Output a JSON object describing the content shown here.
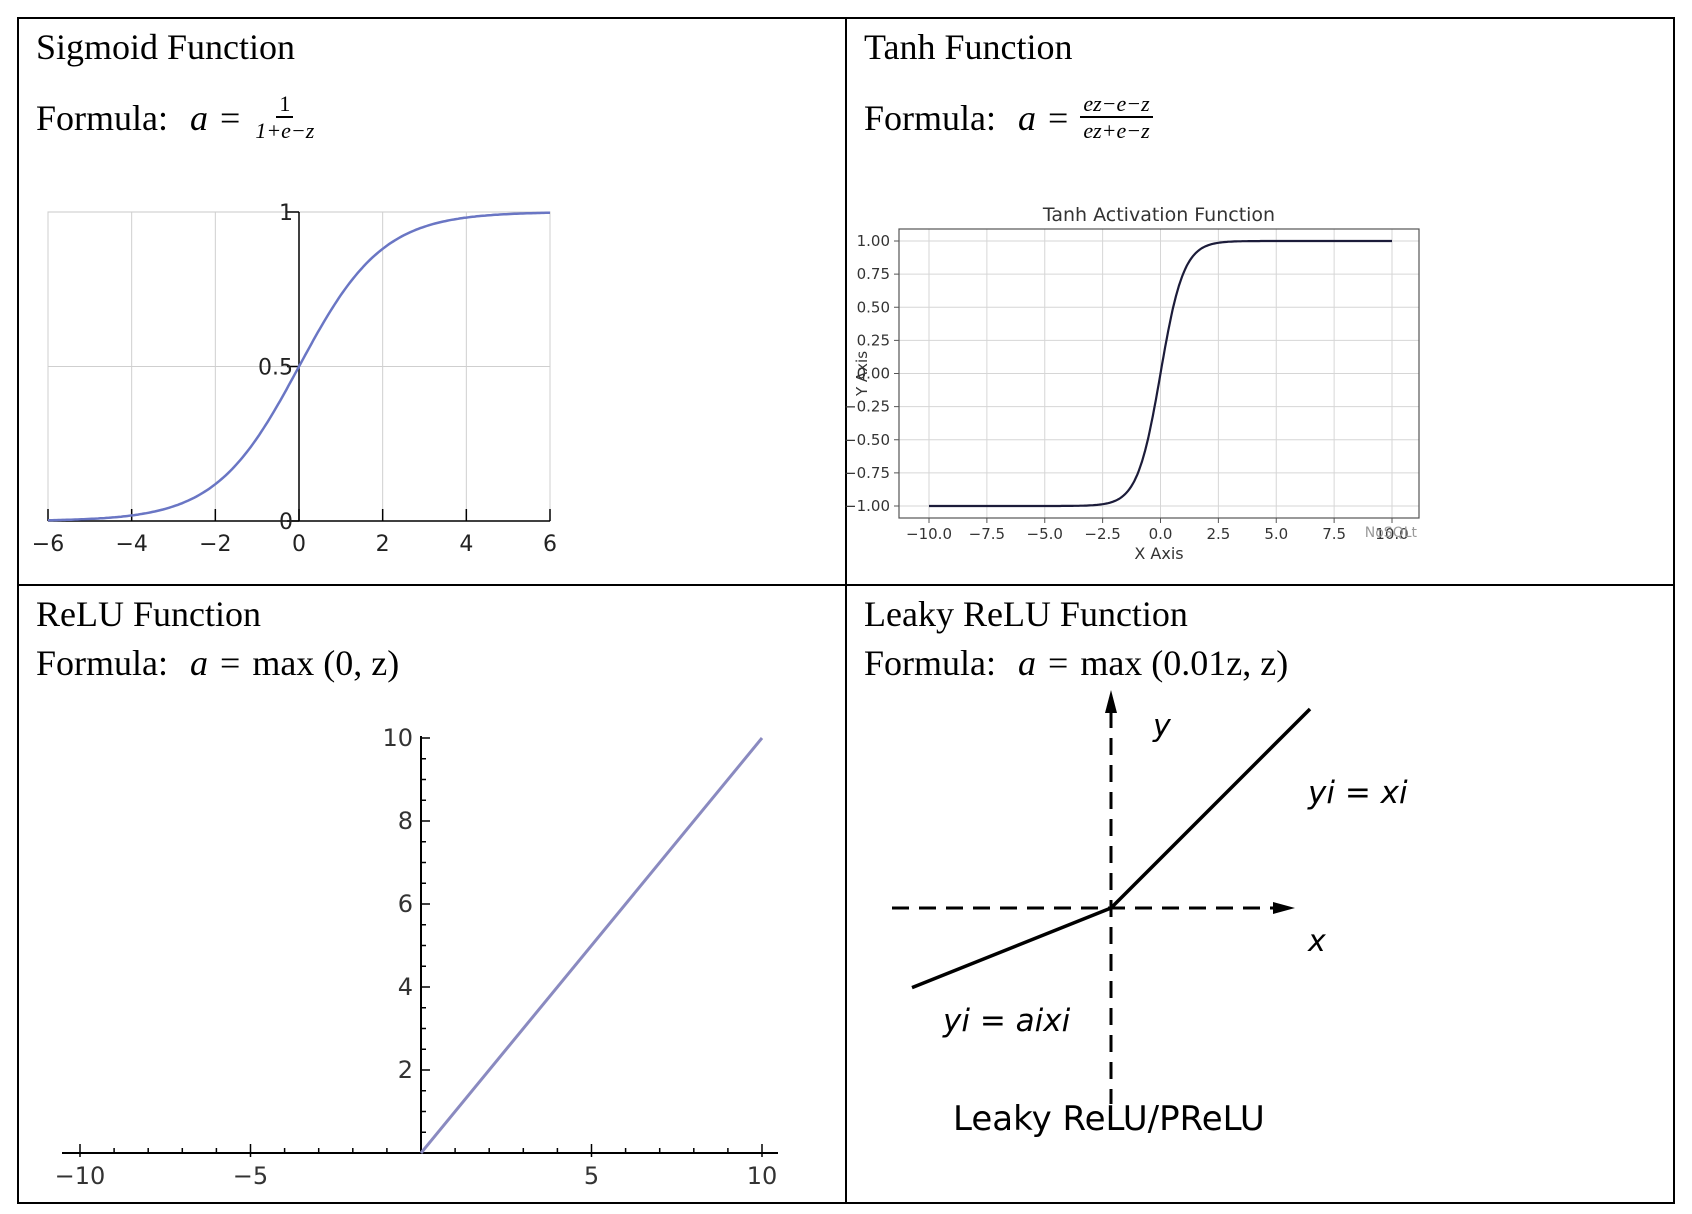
{
  "panels": [
    {
      "title": "Sigmoid Function",
      "formula_label": "Formula:",
      "formula": {
        "lhs": "a",
        "eq": "=",
        "numerator": "1",
        "denominator": "1+e−z"
      }
    },
    {
      "title": "Tanh Function",
      "formula_label": "Formula:",
      "formula": {
        "lhs": "a",
        "eq": "=",
        "numerator": "ez−e−z",
        "denominator": "ez+e−z"
      }
    },
    {
      "title": "ReLU Function",
      "formula_label": "Formula:",
      "formula": {
        "lhs": "a",
        "eq": "=",
        "rhs": "max (0, z)"
      }
    },
    {
      "title": "Leaky ReLU Function",
      "formula_label": "Formula:",
      "formula": {
        "lhs": "a",
        "eq": "=",
        "rhs": "max (0.01z, z)"
      }
    }
  ],
  "chart_data": [
    {
      "type": "line",
      "title": "",
      "xlabel": "",
      "ylabel": "",
      "xlim": [
        -6,
        6
      ],
      "ylim": [
        0,
        1
      ],
      "xticks": [
        "−6",
        "−4",
        "−2",
        "0",
        "2",
        "4",
        "6"
      ],
      "yticks": [
        "0",
        "0.5",
        "1"
      ],
      "grid": true,
      "color": "#6a76c4",
      "series": [
        {
          "function": "sigmoid",
          "x": [
            -6,
            -5,
            -4,
            -3,
            -2,
            -1,
            0,
            1,
            2,
            3,
            4,
            5,
            6
          ],
          "y": [
            0.0025,
            0.0067,
            0.018,
            0.047,
            0.119,
            0.269,
            0.5,
            0.731,
            0.881,
            0.953,
            0.982,
            0.993,
            0.9975
          ]
        }
      ]
    },
    {
      "type": "line",
      "title": "Tanh Activation Function",
      "xlabel": "X Axis",
      "ylabel": "Y Axis",
      "xlim": [
        -10,
        10
      ],
      "ylim": [
        -1,
        1
      ],
      "xticks": [
        "−10.0",
        "−7.5",
        "−5.0",
        "−2.5",
        "0.0",
        "2.5",
        "5.0",
        "7.5",
        "10.0"
      ],
      "yticks": [
        "1.00",
        "0.75",
        "0.50",
        "0.25",
        "0.00",
        "−0.25",
        "−0.50",
        "−0.75",
        "−1.00"
      ],
      "grid": true,
      "watermark": "NoSQLt",
      "color": "#1c1c3a",
      "series": [
        {
          "function": "tanh",
          "x": [
            -10,
            -3,
            -2,
            -1,
            0,
            1,
            2,
            3,
            10
          ],
          "y": [
            -1.0,
            -0.995,
            -0.964,
            -0.762,
            0,
            0.762,
            0.964,
            0.995,
            1.0
          ]
        }
      ]
    },
    {
      "type": "line",
      "title": "",
      "xlabel": "",
      "ylabel": "",
      "xlim": [
        -10,
        10
      ],
      "ylim": [
        0,
        10
      ],
      "xticks": [
        "−10",
        "−5",
        "5",
        "10"
      ],
      "yticks": [
        "2",
        "4",
        "6",
        "8",
        "10"
      ],
      "grid": false,
      "color": "#8a8ac0",
      "series": [
        {
          "function": "relu",
          "x": [
            -10,
            0,
            10
          ],
          "y": [
            0,
            0,
            10
          ]
        }
      ]
    },
    {
      "type": "line",
      "title": "",
      "xlabel": "x",
      "ylabel": "y",
      "annotations": [
        "yi = xi",
        "yi = aixi",
        "Leaky ReLU/PReLU"
      ],
      "grid": false,
      "color": "#000000",
      "series": [
        {
          "function": "leaky_relu",
          "x": [
            -1,
            0,
            1
          ],
          "y": [
            -0.4,
            0,
            1
          ]
        }
      ]
    }
  ]
}
